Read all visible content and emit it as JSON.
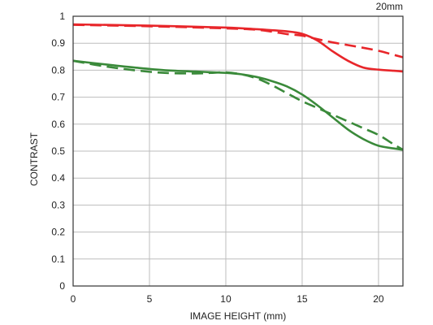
{
  "chart_data": {
    "type": "line",
    "title": "20mm",
    "xlabel": "IMAGE HEIGHT (mm)",
    "ylabel": "CONTRAST",
    "xlim": [
      0,
      21.6
    ],
    "ylim": [
      0,
      1
    ],
    "xticks": [
      0,
      5,
      10,
      15,
      20
    ],
    "yticks": [
      0,
      0.1,
      0.2,
      0.3,
      0.4,
      0.5,
      0.6,
      0.7,
      0.8,
      0.9,
      1
    ],
    "ytick_labels": [
      "0",
      "0.1",
      "0.2",
      "0.3",
      "0.4",
      "0.5",
      "0.6",
      "0.7",
      "0.8",
      "0.9",
      "1"
    ],
    "xtick_labels": [
      "0",
      "5",
      "10",
      "15",
      "20"
    ],
    "grid": true,
    "series": [
      {
        "color": "#e8262a",
        "dash": false,
        "x": [
          0,
          5,
          10,
          12,
          14,
          15,
          16,
          17,
          18,
          19,
          20,
          21,
          21.6
        ],
        "y": [
          0.97,
          0.965,
          0.958,
          0.952,
          0.944,
          0.935,
          0.91,
          0.87,
          0.835,
          0.81,
          0.802,
          0.798,
          0.795
        ]
      },
      {
        "color": "#e8262a",
        "dash": true,
        "x": [
          0,
          5,
          10,
          12,
          13,
          14,
          15,
          16,
          17,
          18,
          19,
          20,
          21,
          21.6
        ],
        "y": [
          0.968,
          0.963,
          0.955,
          0.95,
          0.943,
          0.934,
          0.928,
          0.915,
          0.903,
          0.893,
          0.883,
          0.872,
          0.857,
          0.848
        ]
      },
      {
        "color": "#3a8a3a",
        "dash": false,
        "x": [
          0,
          2,
          4,
          6,
          8,
          10,
          11,
          12,
          13,
          14,
          15,
          16,
          17,
          18,
          19,
          20,
          21,
          21.6
        ],
        "y": [
          0.835,
          0.822,
          0.81,
          0.8,
          0.795,
          0.79,
          0.785,
          0.775,
          0.76,
          0.74,
          0.71,
          0.67,
          0.625,
          0.58,
          0.545,
          0.52,
          0.51,
          0.505
        ]
      },
      {
        "color": "#3a8a3a",
        "dash": true,
        "x": [
          0,
          2,
          4,
          6,
          8,
          9,
          10,
          11,
          12,
          13,
          14,
          15,
          16,
          17,
          18,
          19,
          20,
          21,
          21.6
        ],
        "y": [
          0.835,
          0.815,
          0.8,
          0.79,
          0.788,
          0.79,
          0.792,
          0.785,
          0.77,
          0.745,
          0.715,
          0.685,
          0.66,
          0.635,
          0.61,
          0.585,
          0.56,
          0.525,
          0.505
        ]
      }
    ]
  }
}
